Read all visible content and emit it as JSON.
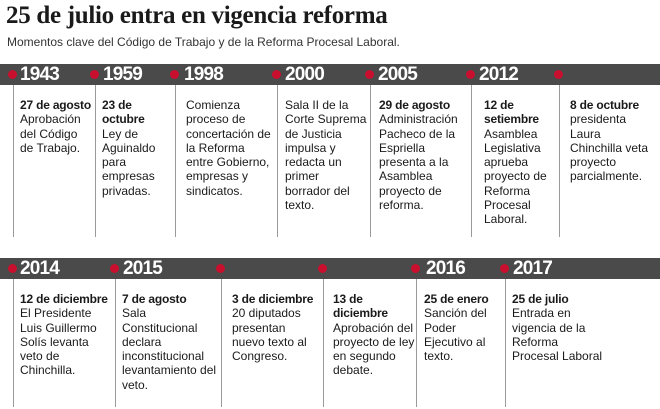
{
  "header": {
    "title": "25 de julio entra en vigencia reforma",
    "subtitle": "Momentos clave del Código de Trabajo y de la Reforma Procesal Laboral."
  },
  "colors": {
    "band": "#4a4a4a",
    "dot": "#c8102e",
    "text": "#1a1a1a",
    "separator": "#9a9a9a"
  },
  "timeline": {
    "row1": {
      "years": [
        "1943",
        "1959",
        "1998",
        "2000",
        "2005",
        "2012"
      ],
      "entries": [
        {
          "date": "27 de agosto",
          "text": "Aprobación del Código de Trabajo."
        },
        {
          "date": "23 de octubre",
          "text": "Ley de Aguinaldo para empresas privadas."
        },
        {
          "date": "",
          "text": "Comienza proceso de concertación de la Reforma entre Gobierno, empresas y sindicatos."
        },
        {
          "date": "",
          "text": "Sala II de la Corte Suprema de Justicia impulsa y redacta un primer borrador del texto."
        },
        {
          "date": "29 de agosto",
          "text": "Administración Pacheco de la Espriella presenta a la Asamblea proyecto de reforma."
        },
        {
          "date": "12 de setiembre",
          "text": "Asamblea Legislativa aprueba proyecto de Reforma Procesal Laboral."
        },
        {
          "date": "8 de octubre",
          "text": "presidenta Laura Chinchilla veta proyecto parcialmente."
        }
      ]
    },
    "row2": {
      "years": [
        "2014",
        "2015",
        "2016",
        "2017"
      ],
      "entries": [
        {
          "date": "12 de diciembre",
          "text": "El Presidente Luis Guillermo Solís levanta veto de Chinchilla."
        },
        {
          "date": "7 de agosto",
          "text": "Sala Constitucional declara inconstitucional levantamiento del veto."
        },
        {
          "date": "3 de diciembre",
          "text": "20 diputados presentan nuevo texto al Congreso."
        },
        {
          "date": "13 de diciembre",
          "text": "Aprobación del proyecto de ley en segundo debate."
        },
        {
          "date": "25 de enero",
          "text": "Sanción del Poder Ejecutivo al texto."
        },
        {
          "date": "25 de julio",
          "text": "Entrada en vigencia de la Reforma Procesal Laboral"
        }
      ]
    }
  }
}
